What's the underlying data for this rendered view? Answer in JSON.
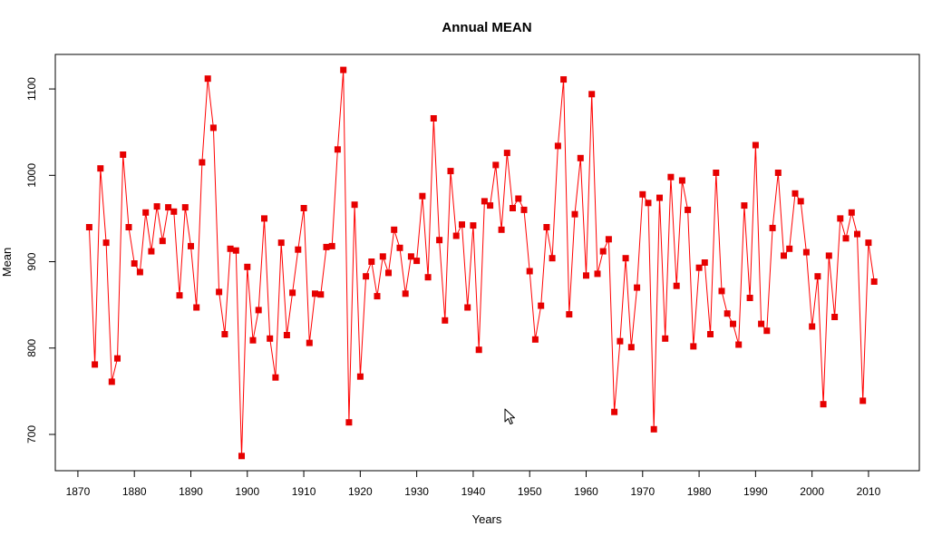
{
  "chart_data": {
    "type": "line",
    "title": "Annual MEAN",
    "xlabel": "Years",
    "ylabel": "Mean",
    "xlim": [
      1866,
      2019
    ],
    "ylim": [
      658,
      1140
    ],
    "x_ticks": [
      1870,
      1880,
      1890,
      1900,
      1910,
      1920,
      1930,
      1940,
      1950,
      1960,
      1970,
      1980,
      1990,
      2000,
      2010
    ],
    "y_ticks": [
      700,
      800,
      900,
      1000,
      1100
    ],
    "grid": false,
    "line_color": "#ff0000",
    "marker_color": "#e60000",
    "marker": "square",
    "series": [
      {
        "x": [
          1872,
          1873,
          1874,
          1875,
          1876,
          1877,
          1878,
          1879,
          1880,
          1881,
          1882,
          1883,
          1884,
          1885,
          1886,
          1887,
          1888,
          1889,
          1890,
          1891,
          1892,
          1893,
          1894,
          1895,
          1896,
          1897,
          1898,
          1899,
          1900,
          1901,
          1902,
          1903,
          1904,
          1905,
          1906,
          1907,
          1908,
          1909,
          1910,
          1911,
          1912,
          1913,
          1914,
          1915,
          1916,
          1917,
          1918,
          1919,
          1920,
          1921,
          1922,
          1923,
          1924,
          1925,
          1926,
          1927,
          1928,
          1929,
          1930,
          1931,
          1932,
          1933,
          1934,
          1935,
          1936,
          1937,
          1938,
          1939,
          1940,
          1941,
          1942,
          1943,
          1944,
          1945,
          1946,
          1947,
          1948,
          1949,
          1950,
          1951,
          1952,
          1953,
          1954,
          1955,
          1956,
          1957,
          1958,
          1959,
          1960,
          1961,
          1962,
          1963,
          1964,
          1965,
          1966,
          1967,
          1968,
          1969,
          1970,
          1971,
          1972,
          1973,
          1974,
          1975,
          1976,
          1977,
          1978,
          1979,
          1980,
          1981,
          1982,
          1983,
          1984,
          1985,
          1986,
          1987,
          1988,
          1989,
          1990,
          1991,
          1992,
          1993,
          1994,
          1995,
          1996,
          1997,
          1998,
          1999,
          2000,
          2001,
          2002,
          2003,
          2004,
          2005,
          2006,
          2007,
          2008,
          2009,
          2010,
          2011
        ],
        "values": [
          940,
          781,
          1008,
          922,
          761,
          788,
          1024,
          940,
          898,
          888,
          957,
          912,
          964,
          924,
          963,
          958,
          861,
          963,
          918,
          847,
          1015,
          1112,
          1055,
          865,
          816,
          915,
          913,
          675,
          894,
          809,
          844,
          950,
          811,
          766,
          922,
          815,
          864,
          914,
          962,
          806,
          863,
          862,
          917,
          918,
          1030,
          1122,
          714,
          966,
          767,
          883,
          900,
          860,
          906,
          887,
          937,
          916,
          863,
          906,
          901,
          976,
          882,
          1066,
          925,
          832,
          1005,
          930,
          943,
          847,
          942,
          798,
          970,
          965,
          1012,
          937,
          1026,
          962,
          973,
          960,
          889,
          810,
          849,
          940,
          904,
          1034,
          1111,
          839,
          955,
          1020,
          884,
          1094,
          886,
          912,
          926,
          726,
          808,
          904,
          801,
          870,
          978,
          968,
          706,
          974,
          811,
          998,
          872,
          994,
          960,
          802,
          893,
          899,
          816,
          1003,
          866,
          840,
          828,
          804,
          965,
          858,
          1035,
          828,
          820,
          939,
          1003,
          907,
          915,
          979,
          970,
          911,
          825,
          883,
          735,
          907,
          836,
          950,
          927,
          957,
          932,
          739,
          922,
          877
        ]
      }
    ]
  }
}
